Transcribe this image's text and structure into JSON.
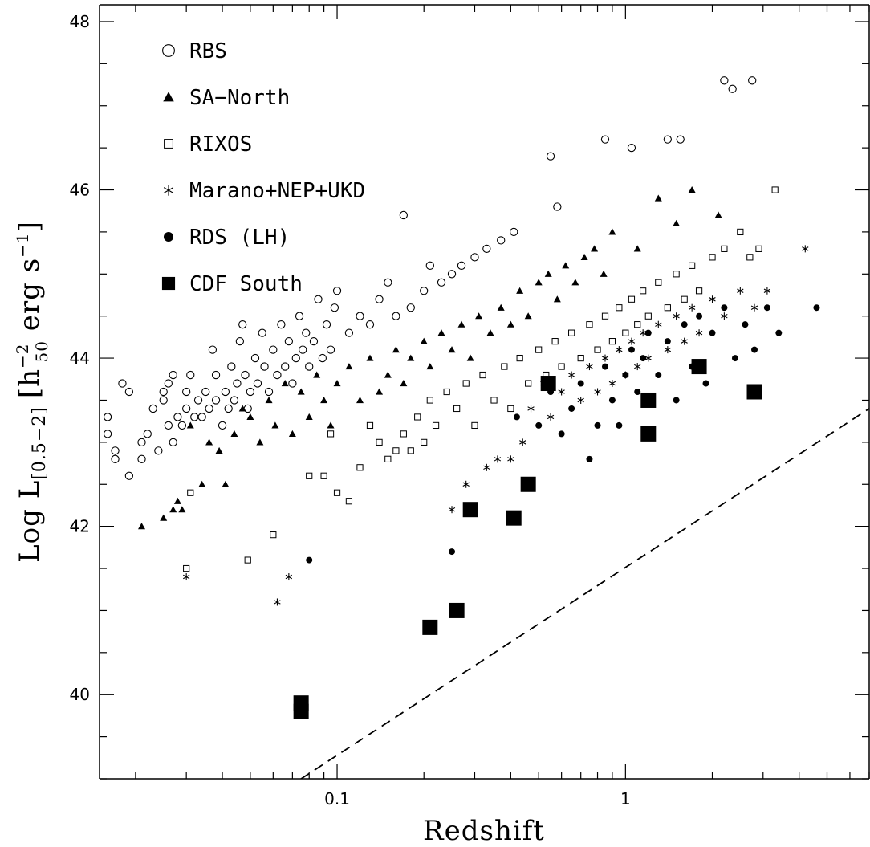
{
  "chart_data": {
    "type": "scatter",
    "xlabel": "Redshift",
    "ylabel": {
      "prefix": "Log L",
      "subscript": "[0.5−2]",
      "bracket_open": "[",
      "h": "h",
      "h_sup": "−2",
      "h_sub": "50",
      "erg": " erg s",
      "s_sup": "−1",
      "bracket_close": "]"
    },
    "x_scale": "log",
    "xlim": [
      0.015,
      7.0
    ],
    "ylim": [
      39.0,
      48.2
    ],
    "x_ticks": [
      {
        "value": 0.1,
        "label": "0.1"
      },
      {
        "value": 1,
        "label": "1"
      }
    ],
    "y_ticks": [
      {
        "value": 40,
        "label": "40"
      },
      {
        "value": 42,
        "label": "42"
      },
      {
        "value": 44,
        "label": "44"
      },
      {
        "value": 46,
        "label": "46"
      },
      {
        "value": 48,
        "label": "48"
      }
    ],
    "legend_position": "top-left",
    "limit_line": {
      "style": "dashed",
      "points": [
        [
          0.075,
          39.0
        ],
        [
          7.0,
          43.4
        ]
      ]
    },
    "series": [
      {
        "name": "RBS",
        "marker": "open-circle",
        "points": [
          [
            0.016,
            43.3
          ],
          [
            0.016,
            43.1
          ],
          [
            0.017,
            42.9
          ],
          [
            0.017,
            42.8
          ],
          [
            0.018,
            43.7
          ],
          [
            0.019,
            43.6
          ],
          [
            0.019,
            42.6
          ],
          [
            0.021,
            43.0
          ],
          [
            0.021,
            42.8
          ],
          [
            0.022,
            43.1
          ],
          [
            0.023,
            43.4
          ],
          [
            0.024,
            42.9
          ],
          [
            0.025,
            43.5
          ],
          [
            0.025,
            43.6
          ],
          [
            0.026,
            43.2
          ],
          [
            0.026,
            43.7
          ],
          [
            0.027,
            43.8
          ],
          [
            0.027,
            43.0
          ],
          [
            0.028,
            43.3
          ],
          [
            0.029,
            43.2
          ],
          [
            0.03,
            43.6
          ],
          [
            0.03,
            43.4
          ],
          [
            0.031,
            43.8
          ],
          [
            0.032,
            43.3
          ],
          [
            0.033,
            43.5
          ],
          [
            0.034,
            43.3
          ],
          [
            0.035,
            43.6
          ],
          [
            0.036,
            43.4
          ],
          [
            0.037,
            44.1
          ],
          [
            0.038,
            43.8
          ],
          [
            0.038,
            43.5
          ],
          [
            0.04,
            43.2
          ],
          [
            0.041,
            43.6
          ],
          [
            0.042,
            43.4
          ],
          [
            0.043,
            43.9
          ],
          [
            0.044,
            43.5
          ],
          [
            0.045,
            43.7
          ],
          [
            0.046,
            44.2
          ],
          [
            0.047,
            44.4
          ],
          [
            0.048,
            43.8
          ],
          [
            0.049,
            43.4
          ],
          [
            0.05,
            43.6
          ],
          [
            0.052,
            44.0
          ],
          [
            0.053,
            43.7
          ],
          [
            0.055,
            44.3
          ],
          [
            0.056,
            43.9
          ],
          [
            0.058,
            43.6
          ],
          [
            0.06,
            44.1
          ],
          [
            0.062,
            43.8
          ],
          [
            0.064,
            44.4
          ],
          [
            0.066,
            43.9
          ],
          [
            0.068,
            44.2
          ],
          [
            0.07,
            43.7
          ],
          [
            0.072,
            44.0
          ],
          [
            0.074,
            44.5
          ],
          [
            0.076,
            44.1
          ],
          [
            0.078,
            44.3
          ],
          [
            0.08,
            43.9
          ],
          [
            0.083,
            44.2
          ],
          [
            0.086,
            44.7
          ],
          [
            0.089,
            44.0
          ],
          [
            0.092,
            44.4
          ],
          [
            0.095,
            44.1
          ],
          [
            0.098,
            44.6
          ],
          [
            0.1,
            44.8
          ],
          [
            0.11,
            44.3
          ],
          [
            0.12,
            44.5
          ],
          [
            0.13,
            44.4
          ],
          [
            0.14,
            44.7
          ],
          [
            0.15,
            44.9
          ],
          [
            0.16,
            44.5
          ],
          [
            0.17,
            45.7
          ],
          [
            0.18,
            44.6
          ],
          [
            0.2,
            44.8
          ],
          [
            0.21,
            45.1
          ],
          [
            0.23,
            44.9
          ],
          [
            0.25,
            45.0
          ],
          [
            0.27,
            45.1
          ],
          [
            0.3,
            45.2
          ],
          [
            0.33,
            45.3
          ],
          [
            0.37,
            45.4
          ],
          [
            0.41,
            45.5
          ],
          [
            0.55,
            46.4
          ],
          [
            0.58,
            45.8
          ],
          [
            0.85,
            46.6
          ],
          [
            1.05,
            46.5
          ],
          [
            1.4,
            46.6
          ],
          [
            1.55,
            46.6
          ],
          [
            2.2,
            47.3
          ],
          [
            2.35,
            47.2
          ],
          [
            2.75,
            47.3
          ]
        ]
      },
      {
        "name": "SA−North",
        "marker": "filled-triangle",
        "points": [
          [
            0.021,
            42.0
          ],
          [
            0.025,
            42.1
          ],
          [
            0.027,
            42.2
          ],
          [
            0.028,
            42.3
          ],
          [
            0.029,
            42.2
          ],
          [
            0.031,
            43.2
          ],
          [
            0.034,
            42.5
          ],
          [
            0.036,
            43.0
          ],
          [
            0.039,
            42.9
          ],
          [
            0.041,
            42.5
          ],
          [
            0.044,
            43.1
          ],
          [
            0.047,
            43.4
          ],
          [
            0.05,
            43.3
          ],
          [
            0.054,
            43.0
          ],
          [
            0.058,
            43.5
          ],
          [
            0.061,
            43.2
          ],
          [
            0.066,
            43.7
          ],
          [
            0.07,
            43.1
          ],
          [
            0.075,
            43.6
          ],
          [
            0.08,
            43.3
          ],
          [
            0.085,
            43.8
          ],
          [
            0.09,
            43.5
          ],
          [
            0.095,
            43.2
          ],
          [
            0.1,
            43.7
          ],
          [
            0.11,
            43.9
          ],
          [
            0.12,
            43.5
          ],
          [
            0.13,
            44.0
          ],
          [
            0.14,
            43.6
          ],
          [
            0.15,
            43.8
          ],
          [
            0.16,
            44.1
          ],
          [
            0.17,
            43.7
          ],
          [
            0.18,
            44.0
          ],
          [
            0.2,
            44.2
          ],
          [
            0.21,
            43.9
          ],
          [
            0.23,
            44.3
          ],
          [
            0.25,
            44.1
          ],
          [
            0.27,
            44.4
          ],
          [
            0.29,
            44.0
          ],
          [
            0.31,
            44.5
          ],
          [
            0.34,
            44.3
          ],
          [
            0.37,
            44.6
          ],
          [
            0.4,
            44.4
          ],
          [
            0.43,
            44.8
          ],
          [
            0.46,
            44.5
          ],
          [
            0.5,
            44.9
          ],
          [
            0.54,
            45.0
          ],
          [
            0.58,
            44.7
          ],
          [
            0.62,
            45.1
          ],
          [
            0.67,
            44.9
          ],
          [
            0.72,
            45.2
          ],
          [
            0.78,
            45.3
          ],
          [
            0.84,
            45.0
          ],
          [
            0.9,
            45.5
          ],
          [
            1.1,
            45.3
          ],
          [
            1.3,
            45.9
          ],
          [
            1.5,
            45.6
          ],
          [
            1.7,
            46.0
          ],
          [
            2.1,
            45.7
          ]
        ]
      },
      {
        "name": "RIXOS",
        "marker": "open-square",
        "points": [
          [
            0.03,
            41.5
          ],
          [
            0.031,
            42.4
          ],
          [
            0.049,
            41.6
          ],
          [
            0.06,
            41.9
          ],
          [
            0.08,
            42.6
          ],
          [
            0.09,
            42.6
          ],
          [
            0.095,
            43.1
          ],
          [
            0.1,
            42.4
          ],
          [
            0.11,
            42.3
          ],
          [
            0.12,
            42.7
          ],
          [
            0.13,
            43.2
          ],
          [
            0.14,
            43.0
          ],
          [
            0.15,
            42.8
          ],
          [
            0.16,
            42.9
          ],
          [
            0.17,
            43.1
          ],
          [
            0.18,
            42.9
          ],
          [
            0.19,
            43.3
          ],
          [
            0.2,
            43.0
          ],
          [
            0.21,
            43.5
          ],
          [
            0.22,
            43.2
          ],
          [
            0.24,
            43.6
          ],
          [
            0.26,
            43.4
          ],
          [
            0.28,
            43.7
          ],
          [
            0.3,
            43.2
          ],
          [
            0.32,
            43.8
          ],
          [
            0.35,
            43.5
          ],
          [
            0.38,
            43.9
          ],
          [
            0.4,
            43.4
          ],
          [
            0.43,
            44.0
          ],
          [
            0.46,
            43.7
          ],
          [
            0.5,
            44.1
          ],
          [
            0.53,
            43.8
          ],
          [
            0.57,
            44.2
          ],
          [
            0.6,
            43.9
          ],
          [
            0.65,
            44.3
          ],
          [
            0.7,
            44.0
          ],
          [
            0.75,
            44.4
          ],
          [
            0.8,
            44.1
          ],
          [
            0.85,
            44.5
          ],
          [
            0.9,
            44.2
          ],
          [
            0.95,
            44.6
          ],
          [
            1.0,
            44.3
          ],
          [
            1.05,
            44.7
          ],
          [
            1.1,
            44.4
          ],
          [
            1.15,
            44.8
          ],
          [
            1.2,
            44.5
          ],
          [
            1.3,
            44.9
          ],
          [
            1.4,
            44.6
          ],
          [
            1.5,
            45.0
          ],
          [
            1.6,
            44.7
          ],
          [
            1.7,
            45.1
          ],
          [
            1.8,
            44.8
          ],
          [
            2.0,
            45.2
          ],
          [
            2.2,
            45.3
          ],
          [
            2.5,
            45.5
          ],
          [
            2.7,
            45.2
          ],
          [
            2.9,
            45.3
          ],
          [
            3.3,
            46.0
          ]
        ]
      },
      {
        "name": "Marano+NEP+UKD",
        "marker": "asterisk",
        "points": [
          [
            0.03,
            41.4
          ],
          [
            0.068,
            41.4
          ],
          [
            0.062,
            41.1
          ],
          [
            0.25,
            42.2
          ],
          [
            0.28,
            42.5
          ],
          [
            0.33,
            42.7
          ],
          [
            0.36,
            42.8
          ],
          [
            0.4,
            42.8
          ],
          [
            0.44,
            43.0
          ],
          [
            0.47,
            43.4
          ],
          [
            0.52,
            43.7
          ],
          [
            0.55,
            43.3
          ],
          [
            0.6,
            43.6
          ],
          [
            0.65,
            43.8
          ],
          [
            0.7,
            43.5
          ],
          [
            0.75,
            43.9
          ],
          [
            0.8,
            43.6
          ],
          [
            0.85,
            44.0
          ],
          [
            0.9,
            43.7
          ],
          [
            0.95,
            44.1
          ],
          [
            1.0,
            43.8
          ],
          [
            1.05,
            44.2
          ],
          [
            1.1,
            43.9
          ],
          [
            1.15,
            44.3
          ],
          [
            1.2,
            44.0
          ],
          [
            1.3,
            44.4
          ],
          [
            1.4,
            44.1
          ],
          [
            1.5,
            44.5
          ],
          [
            1.6,
            44.2
          ],
          [
            1.7,
            44.6
          ],
          [
            1.8,
            44.3
          ],
          [
            2.0,
            44.7
          ],
          [
            2.2,
            44.5
          ],
          [
            2.5,
            44.8
          ],
          [
            2.8,
            44.6
          ],
          [
            3.1,
            44.8
          ],
          [
            4.2,
            45.3
          ]
        ]
      },
      {
        "name": "RDS (LH)",
        "marker": "filled-circle",
        "points": [
          [
            0.08,
            41.6
          ],
          [
            0.25,
            41.7
          ],
          [
            0.42,
            43.3
          ],
          [
            0.5,
            43.2
          ],
          [
            0.55,
            43.6
          ],
          [
            0.6,
            43.1
          ],
          [
            0.65,
            43.4
          ],
          [
            0.7,
            43.7
          ],
          [
            0.75,
            42.8
          ],
          [
            0.8,
            43.2
          ],
          [
            0.85,
            43.9
          ],
          [
            0.9,
            43.5
          ],
          [
            0.95,
            43.2
          ],
          [
            1.0,
            43.8
          ],
          [
            1.05,
            44.1
          ],
          [
            1.1,
            43.6
          ],
          [
            1.15,
            44.0
          ],
          [
            1.2,
            44.3
          ],
          [
            1.3,
            43.8
          ],
          [
            1.4,
            44.2
          ],
          [
            1.5,
            43.5
          ],
          [
            1.6,
            44.4
          ],
          [
            1.7,
            43.9
          ],
          [
            1.8,
            44.5
          ],
          [
            1.9,
            43.7
          ],
          [
            2.0,
            44.3
          ],
          [
            2.2,
            44.6
          ],
          [
            2.4,
            44.0
          ],
          [
            2.6,
            44.4
          ],
          [
            2.8,
            44.1
          ],
          [
            3.1,
            44.6
          ],
          [
            3.4,
            44.3
          ],
          [
            4.6,
            44.6
          ]
        ]
      },
      {
        "name": "CDF South",
        "marker": "filled-square-large",
        "points": [
          [
            0.075,
            39.9
          ],
          [
            0.075,
            39.8
          ],
          [
            0.21,
            40.8
          ],
          [
            0.26,
            41.0
          ],
          [
            0.29,
            42.2
          ],
          [
            0.41,
            42.1
          ],
          [
            0.46,
            42.5
          ],
          [
            0.54,
            43.7
          ],
          [
            1.2,
            43.5
          ],
          [
            1.2,
            43.1
          ],
          [
            1.8,
            43.9
          ],
          [
            2.8,
            43.6
          ]
        ]
      }
    ]
  }
}
